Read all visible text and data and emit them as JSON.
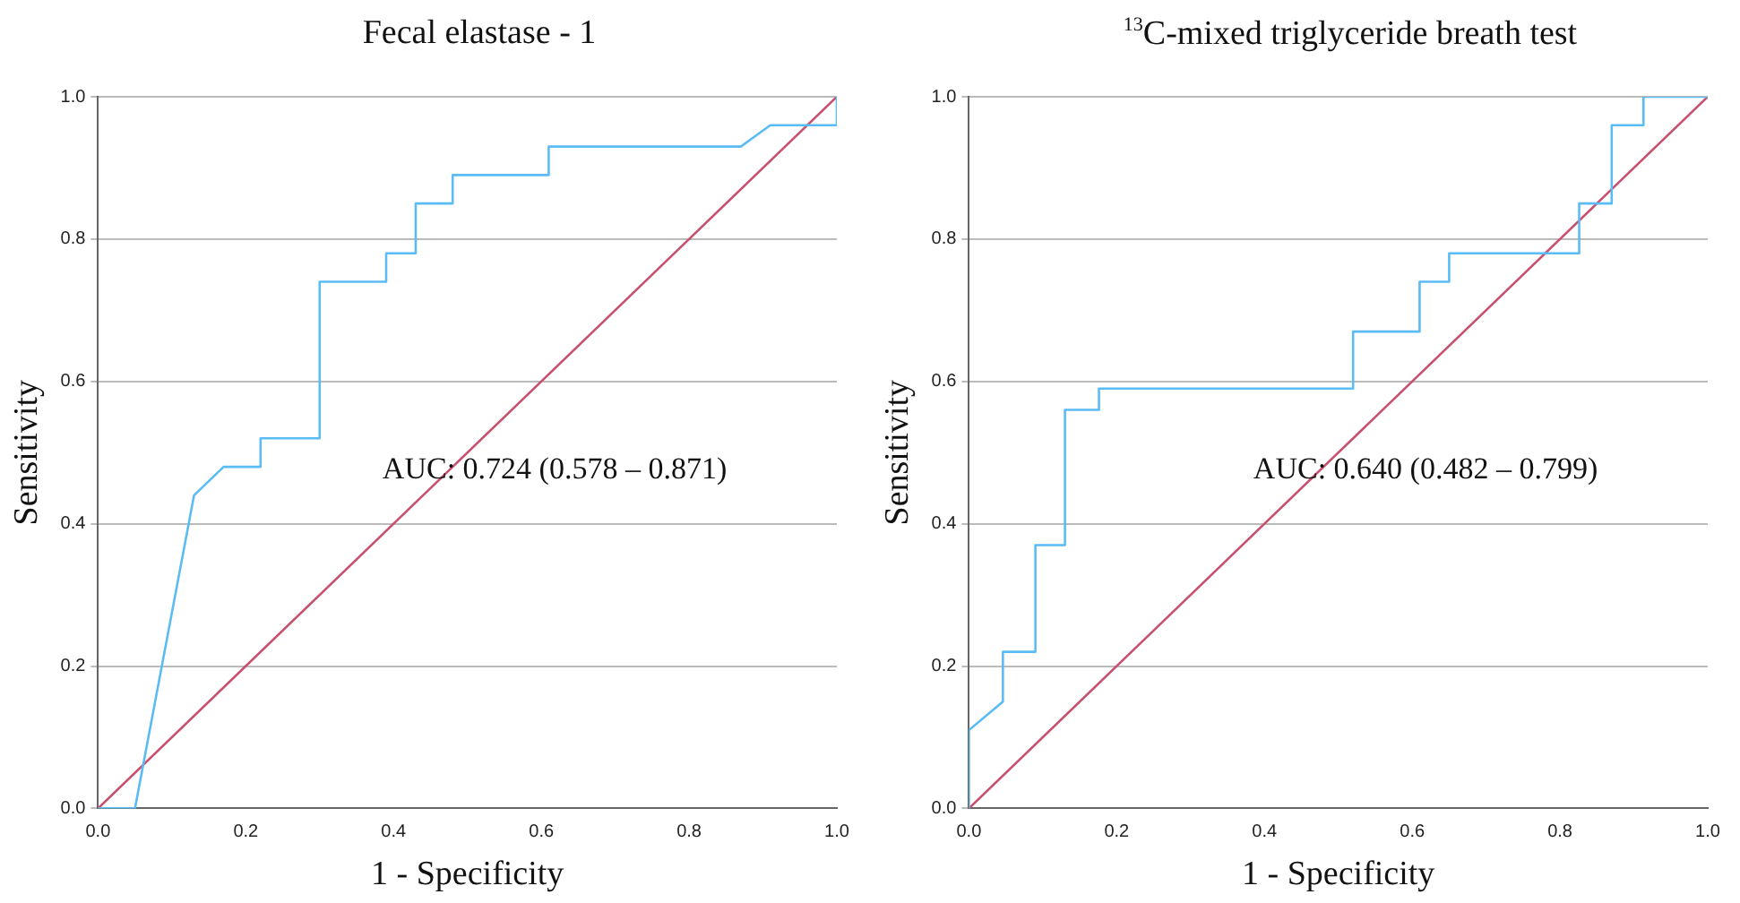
{
  "chart_data": [
    {
      "type": "line",
      "title": "Fecal elastase - 1",
      "xlabel": "1 - Specificity",
      "ylabel": "Sensitivity",
      "annotations": [
        "AUC: 0.724 (0.578 – 0.871)"
      ],
      "series": [
        {
          "color": "#5bbcf5",
          "x": [
            0,
            0.05,
            0.13,
            0.17,
            0.22,
            0.22,
            0.3,
            0.3,
            0.39,
            0.39,
            0.43,
            0.43,
            0.48,
            0.48,
            0.61,
            0.61,
            0.87,
            0.91,
            1.0,
            1.0
          ],
          "values": [
            0,
            0,
            0.44,
            0.48,
            0.48,
            0.52,
            0.52,
            0.74,
            0.74,
            0.78,
            0.78,
            0.85,
            0.85,
            0.89,
            0.89,
            0.93,
            0.93,
            0.96,
            0.96,
            1.0
          ]
        },
        {
          "color": "#c8506e",
          "x": [
            0,
            1
          ],
          "values": [
            0,
            1
          ]
        }
      ],
      "xlim": [
        0,
        1
      ],
      "ylim": [
        0,
        1
      ],
      "xticks": [
        {
          "value": 0,
          "label": "0.0"
        },
        {
          "value": 0.2,
          "label": "0.2"
        },
        {
          "value": 0.4,
          "label": "0.4"
        },
        {
          "value": 0.6,
          "label": "0.6"
        },
        {
          "value": 0.8,
          "label": "0.8"
        },
        {
          "value": 1,
          "label": "1.0"
        }
      ],
      "yticks": [
        {
          "value": 0,
          "label": "0.0"
        },
        {
          "value": 0.2,
          "label": "0.2"
        },
        {
          "value": 0.4,
          "label": "0.4"
        },
        {
          "value": 0.6,
          "label": "0.6"
        },
        {
          "value": 0.8,
          "label": "0.8"
        },
        {
          "value": 1,
          "label": "1.0"
        }
      ],
      "grid": "y",
      "legend": false,
      "marker": "none"
    },
    {
      "type": "line",
      "title": "$^{13}$C-mixed triglyceride breath test",
      "xlabel": "1 - Specificity",
      "ylabel": "Sensitivity",
      "annotations": [
        "AUC: 0.640 (0.482 – 0.799)"
      ],
      "series": [
        {
          "color": "#5bbcf5",
          "x": [
            0,
            0,
            0.046,
            0.046,
            0.09,
            0.09,
            0.13,
            0.13,
            0.176,
            0.176,
            0.52,
            0.52,
            0.61,
            0.61,
            0.65,
            0.65,
            0.826,
            0.826,
            0.87,
            0.87,
            0.913,
            0.913,
            1.0
          ],
          "values": [
            0,
            0.11,
            0.15,
            0.22,
            0.22,
            0.37,
            0.37,
            0.56,
            0.56,
            0.59,
            0.59,
            0.67,
            0.67,
            0.74,
            0.74,
            0.78,
            0.78,
            0.85,
            0.85,
            0.96,
            0.96,
            1.0,
            1.0
          ]
        },
        {
          "color": "#c8506e",
          "x": [
            0,
            1
          ],
          "values": [
            0,
            1
          ]
        }
      ],
      "xlim": [
        0,
        1
      ],
      "ylim": [
        0,
        1
      ],
      "xticks": [
        {
          "value": 0,
          "label": "0.0"
        },
        {
          "value": 0.2,
          "label": "0.2"
        },
        {
          "value": 0.4,
          "label": "0.4"
        },
        {
          "value": 0.6,
          "label": "0.6"
        },
        {
          "value": 0.8,
          "label": "0.8"
        },
        {
          "value": 1,
          "label": "1.0"
        }
      ],
      "yticks": [
        {
          "value": 0,
          "label": "0.0"
        },
        {
          "value": 0.2,
          "label": "0.2"
        },
        {
          "value": 0.4,
          "label": "0.4"
        },
        {
          "value": 0.6,
          "label": "0.6"
        },
        {
          "value": 0.8,
          "label": "0.8"
        },
        {
          "value": 1,
          "label": "1.0"
        }
      ],
      "grid": "y",
      "legend": false,
      "marker": "none"
    }
  ]
}
